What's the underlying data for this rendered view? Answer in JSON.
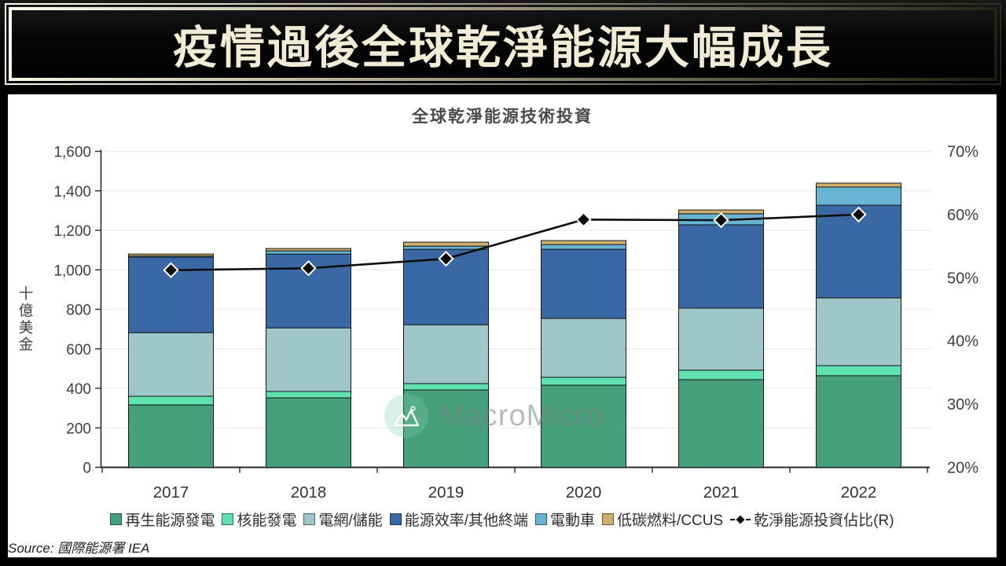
{
  "header": {
    "title": "疫情過後全球乾淨能源大幅成長"
  },
  "panel": {
    "watermark_text": "MacroMicro",
    "source": "Source: 國際能源署 IEA"
  },
  "chart_data": {
    "type": "bar",
    "stacked": true,
    "title": "全球乾淨能源技術投資",
    "categories": [
      "2017",
      "2018",
      "2019",
      "2020",
      "2021",
      "2022"
    ],
    "series": [
      {
        "name": "再生能源發電",
        "color": "#47a07c",
        "values": [
          316,
          352,
          392,
          416,
          444,
          464
        ]
      },
      {
        "name": "核能發電",
        "color": "#5fe2b0",
        "values": [
          44,
          32,
          32,
          40,
          48,
          51
        ]
      },
      {
        "name": "電網/儲能",
        "color": "#9fc6c9",
        "values": [
          322,
          322,
          298,
          298,
          314,
          343
        ]
      },
      {
        "name": "能源效率/其他終端",
        "color": "#3968a4",
        "values": [
          382,
          374,
          382,
          350,
          422,
          469
        ]
      },
      {
        "name": "電動車",
        "color": "#68b4d2",
        "values": [
          6,
          16,
          16,
          24,
          56,
          92
        ]
      },
      {
        "name": "低碳燃料/CCUS",
        "color": "#d0ae6c",
        "values": [
          10,
          12,
          20,
          20,
          19,
          20
        ]
      }
    ],
    "totals": [
      1080,
      1108,
      1140,
      1148,
      1303,
      1439
    ],
    "line_series": {
      "name": "乾淨能源投資佔比(R)",
      "color": "#0d0d0d",
      "axis": "right",
      "values": [
        51.2,
        51.5,
        53.0,
        59.2,
        59.1,
        60.0
      ]
    },
    "left_axis": {
      "label": "十億美金",
      "min": 0,
      "max": 1600,
      "step": 200,
      "tick_labels": [
        "0",
        "200",
        "400",
        "600",
        "800",
        "1,000",
        "1,200",
        "1,400",
        "1,600"
      ]
    },
    "right_axis": {
      "min": 20,
      "max": 70,
      "step": 10,
      "tick_labels": [
        "20%",
        "30%",
        "40%",
        "50%",
        "60%",
        "70%"
      ]
    },
    "grid": true,
    "legend_position": "bottom"
  }
}
